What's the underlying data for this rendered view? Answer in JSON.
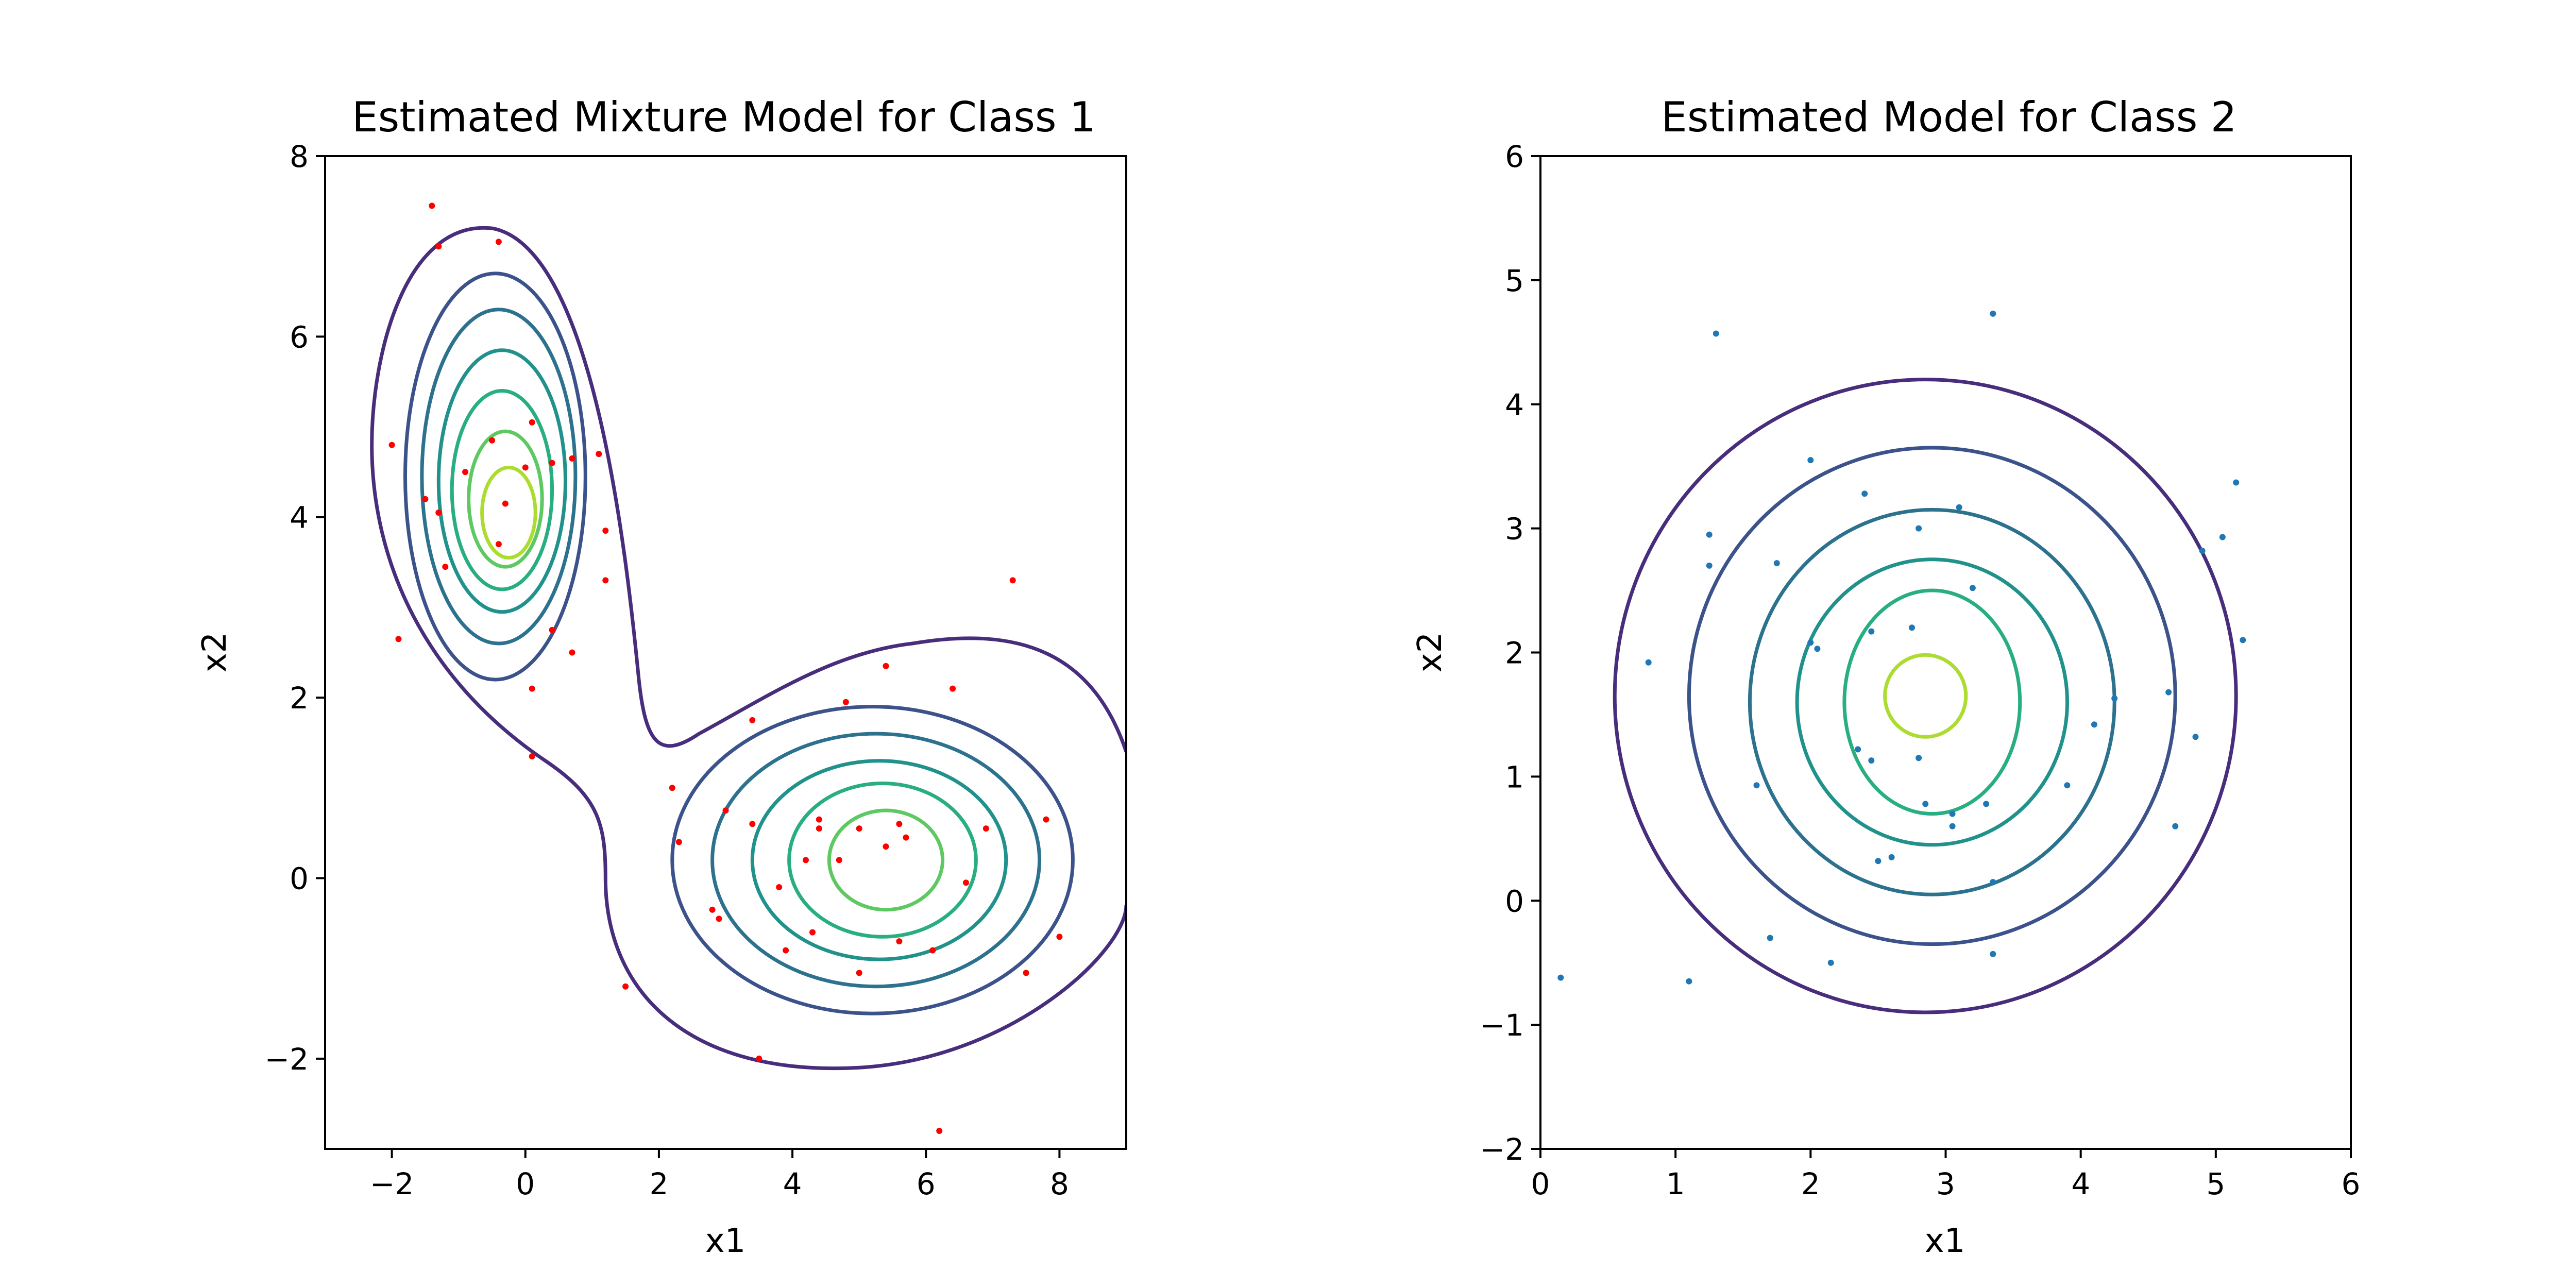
{
  "chart_data": [
    {
      "type": "scatter",
      "title": "Estimated Mixture Model for Class 1",
      "xlabel": "x1",
      "ylabel": "x2",
      "xlim": [
        -3,
        9
      ],
      "ylim": [
        -3,
        8
      ],
      "xticks": [
        -2,
        0,
        2,
        4,
        6,
        8
      ],
      "yticks": [
        -2,
        0,
        2,
        4,
        6,
        8
      ],
      "grid": false,
      "legend": "none",
      "point_color": "#ff0000",
      "contour_colors": [
        "#472d7b",
        "#3b528b",
        "#2c728e",
        "#21918c",
        "#28ae80",
        "#5ec962",
        "#addc30"
      ],
      "series": [
        {
          "x": [
            -1.4,
            -1.3,
            -0.4,
            -2.0,
            -1.9,
            -1.5,
            -1.3,
            -1.2,
            -0.9,
            -0.5,
            -0.3,
            -0.4,
            0.0,
            0.1,
            0.4,
            0.7,
            1.1,
            1.2,
            1.2,
            0.4,
            0.7,
            0.1,
            0.1,
            1.5,
            2.2,
            2.3,
            2.9,
            3.4,
            3.4,
            3.5,
            3.8,
            3.9,
            4.2,
            4.3,
            4.4,
            4.4,
            4.7,
            4.8,
            5.0,
            5.0,
            5.4,
            5.4,
            5.6,
            5.6,
            5.7,
            6.1,
            6.4,
            6.6,
            6.9,
            7.3,
            7.5,
            7.8,
            8.0,
            2.8,
            3.0,
            6.2
          ],
          "y": [
            7.45,
            7.0,
            7.05,
            4.8,
            2.65,
            4.2,
            4.05,
            3.45,
            4.5,
            4.85,
            4.15,
            3.7,
            4.55,
            5.05,
            4.6,
            4.65,
            4.7,
            3.85,
            3.3,
            2.75,
            2.5,
            2.1,
            1.35,
            -1.2,
            1.0,
            0.4,
            -0.45,
            0.6,
            1.75,
            -2.0,
            -0.1,
            -0.8,
            0.2,
            -0.6,
            0.55,
            0.65,
            0.2,
            1.95,
            -1.05,
            0.55,
            0.35,
            2.35,
            0.6,
            -0.7,
            0.45,
            -0.8,
            2.1,
            -0.05,
            0.55,
            3.3,
            -1.05,
            0.65,
            -0.65,
            -0.35,
            0.75,
            -2.8
          ]
        }
      ]
    },
    {
      "type": "scatter",
      "title": "Estimated Model for Class 2",
      "xlabel": "x1",
      "ylabel": "x2",
      "xlim": [
        0,
        6
      ],
      "ylim": [
        -2,
        6
      ],
      "xticks": [
        0,
        1,
        2,
        3,
        4,
        5,
        6
      ],
      "yticks": [
        -2,
        -1,
        0,
        1,
        2,
        3,
        4,
        5,
        6
      ],
      "grid": false,
      "legend": "none",
      "point_color": "#1f77b4",
      "contour_colors": [
        "#472d7b",
        "#3b528b",
        "#2c728e",
        "#21918c",
        "#28ae80",
        "#5ec962",
        "#addc30"
      ],
      "series": [
        {
          "x": [
            0.15,
            0.8,
            1.1,
            1.25,
            1.25,
            1.3,
            1.6,
            1.7,
            1.75,
            2.0,
            2.0,
            2.05,
            2.15,
            2.35,
            2.4,
            2.45,
            2.45,
            2.5,
            2.6,
            2.75,
            2.8,
            2.8,
            2.85,
            3.05,
            3.05,
            3.1,
            3.2,
            3.3,
            3.35,
            3.35,
            3.35,
            3.9,
            4.1,
            4.25,
            4.65,
            4.7,
            4.85,
            4.9,
            5.05,
            5.15,
            5.2
          ],
          "y": [
            -0.62,
            1.92,
            -0.65,
            2.95,
            2.7,
            4.57,
            0.93,
            -0.3,
            2.72,
            3.55,
            2.08,
            2.03,
            -0.5,
            1.22,
            3.28,
            2.17,
            1.13,
            0.32,
            0.35,
            2.2,
            1.15,
            3.0,
            0.78,
            0.7,
            0.6,
            3.17,
            2.52,
            0.78,
            0.15,
            -0.43,
            4.73,
            0.93,
            1.42,
            1.63,
            1.68,
            0.6,
            1.32,
            2.82,
            2.93,
            3.37,
            2.1
          ]
        }
      ]
    }
  ]
}
